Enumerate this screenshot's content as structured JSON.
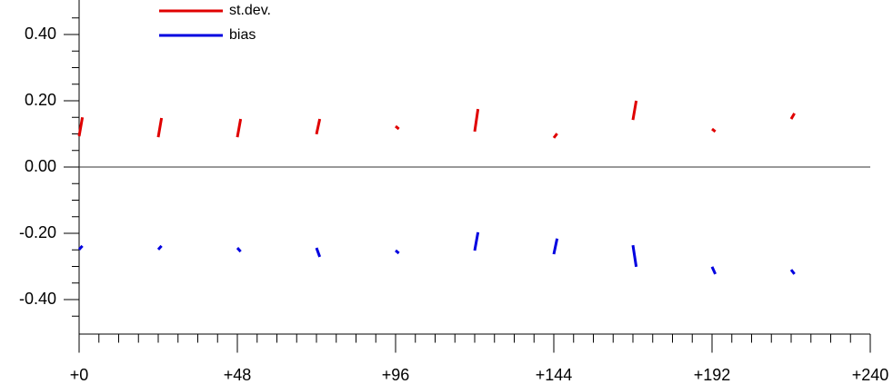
{
  "chart_data": {
    "type": "line",
    "x": [
      0,
      1,
      null,
      24,
      25,
      null,
      48,
      49,
      null,
      72,
      73,
      null,
      96,
      97,
      null,
      120,
      121,
      null,
      144,
      145,
      null,
      168,
      169,
      null,
      192,
      193,
      null,
      216,
      217
    ],
    "series": [
      {
        "name": "st.dev.",
        "color": "#e00000",
        "values": [
          0.093,
          0.15,
          null,
          0.09,
          0.148,
          null,
          0.09,
          0.145,
          null,
          0.099,
          0.145,
          null,
          0.123,
          0.115,
          null,
          0.107,
          0.175,
          null,
          0.088,
          0.101,
          null,
          0.142,
          0.2,
          null,
          0.115,
          0.107,
          null,
          0.145,
          0.162
        ]
      },
      {
        "name": "bias",
        "color": "#0000e0",
        "values": [
          -0.249,
          -0.238,
          null,
          -0.249,
          -0.238,
          null,
          -0.244,
          -0.255,
          null,
          -0.244,
          -0.271,
          null,
          -0.252,
          -0.26,
          null,
          -0.252,
          -0.197,
          null,
          -0.263,
          -0.216,
          null,
          -0.236,
          -0.301,
          null,
          -0.301,
          -0.323,
          null,
          -0.31,
          -0.323
        ]
      }
    ],
    "xlim": [
      0,
      240
    ],
    "xticks": [
      {
        "value": 0,
        "label": "+0"
      },
      {
        "value": 48,
        "label": "+48"
      },
      {
        "value": 96,
        "label": "+96"
      },
      {
        "value": 144,
        "label": "+144"
      },
      {
        "value": 192,
        "label": "+192"
      },
      {
        "value": 240,
        "label": "+240"
      }
    ],
    "xminorticks": [
      6,
      12,
      18,
      24,
      30,
      36,
      42,
      54,
      60,
      66,
      72,
      78,
      84,
      90,
      102,
      108,
      114,
      120,
      126,
      132,
      138,
      150,
      156,
      162,
      168,
      174,
      180,
      186,
      198,
      204,
      210,
      216,
      222,
      228,
      234
    ],
    "ylim": [
      -0.5,
      0.5
    ],
    "yticks": [
      {
        "value": -0.4,
        "label": "-0.40"
      },
      {
        "value": -0.2,
        "label": "-0.20"
      },
      {
        "value": 0,
        "label": "0.00"
      },
      {
        "value": 0.2,
        "label": "0.20"
      },
      {
        "value": 0.4,
        "label": "0.40"
      }
    ],
    "yminorticks": [
      -0.45,
      -0.35,
      -0.3,
      -0.25,
      -0.15,
      -0.1,
      -0.05,
      0.05,
      0.1,
      0.15,
      0.25,
      0.3,
      0.35,
      0.45
    ],
    "zero_line": true,
    "legend": "upper-left"
  }
}
